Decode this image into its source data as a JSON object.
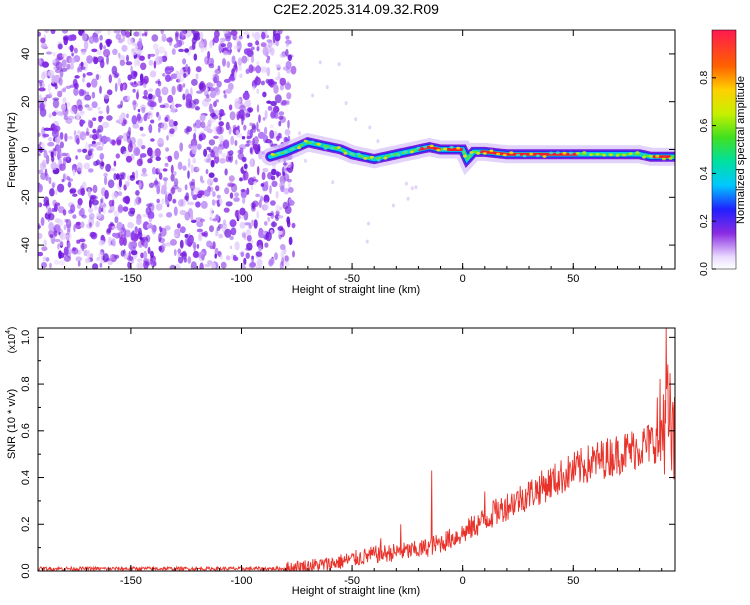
{
  "page_title": "C2E2.2025.314.09.32.R09",
  "chart_data": [
    {
      "type": "heatmap",
      "xlabel": "Height of straight line (km)",
      "ylabel": "Frequency (Hz)",
      "xlim": [
        -192,
        96
      ],
      "ylim": [
        -50,
        50
      ],
      "x_ticks": [
        -150,
        -100,
        -50,
        0,
        50
      ],
      "y_ticks": [
        -40,
        -20,
        0,
        20,
        40
      ],
      "noise_region_x": [
        -192,
        -80
      ],
      "signal_ridge": {
        "x": [
          -87,
          -80,
          -75,
          -70,
          -65,
          -60,
          -55,
          -50,
          -45,
          -40,
          -35,
          -30,
          -25,
          -20,
          -15,
          -10,
          -5,
          0,
          2,
          5,
          10,
          20,
          30,
          40,
          50,
          60,
          70,
          80,
          85,
          90,
          96
        ],
        "y": [
          -3,
          -1,
          1,
          3,
          2,
          1,
          0,
          -2,
          -3,
          -4,
          -3,
          -2,
          -1,
          0,
          1,
          0,
          0,
          0,
          -4,
          -1,
          -1,
          -2,
          -2,
          -2,
          -2,
          -2,
          -2,
          -2,
          -3,
          -3,
          -3
        ]
      },
      "colorbar": {
        "label": "Normalized spectral amplitude",
        "range": [
          0,
          1
        ],
        "ticks": [
          "0.0",
          "0.2",
          "0.4",
          "0.6",
          "0.8"
        ]
      },
      "grid": false
    },
    {
      "type": "line",
      "xlabel": "Height of straight line (km)",
      "ylabel": "SNR (10 * v/v)",
      "scale_label": "(x10",
      "scale_exp": "4",
      "scale_close": ")",
      "xlim": [
        -192,
        96
      ],
      "ylim": [
        0,
        1.04
      ],
      "x_ticks": [
        -150,
        -100,
        -50,
        0,
        50
      ],
      "y_ticks": [
        "0.0",
        "0.2",
        "0.4",
        "0.6",
        "0.8",
        "1.0"
      ],
      "color": "#e8322a",
      "envelope": {
        "x": [
          -192,
          -100,
          -80,
          -60,
          -50,
          -40,
          -30,
          -20,
          -10,
          0,
          10,
          20,
          30,
          40,
          50,
          60,
          70,
          80,
          88,
          90,
          92,
          94,
          96
        ],
        "y": [
          0.01,
          0.01,
          0.01,
          0.03,
          0.05,
          0.07,
          0.08,
          0.09,
          0.12,
          0.16,
          0.22,
          0.28,
          0.33,
          0.38,
          0.43,
          0.47,
          0.5,
          0.53,
          0.56,
          0.6,
          0.7,
          0.6,
          0.5
        ]
      },
      "spikes": [
        {
          "x": -14,
          "y": 0.43
        },
        {
          "x": 10,
          "y": 0.34
        },
        {
          "x": 14,
          "y": 0.3
        },
        {
          "x": -28,
          "y": 0.2
        },
        {
          "x": -37,
          "y": 0.14
        },
        {
          "x": 92,
          "y": 1.04
        }
      ],
      "grid": false
    }
  ]
}
